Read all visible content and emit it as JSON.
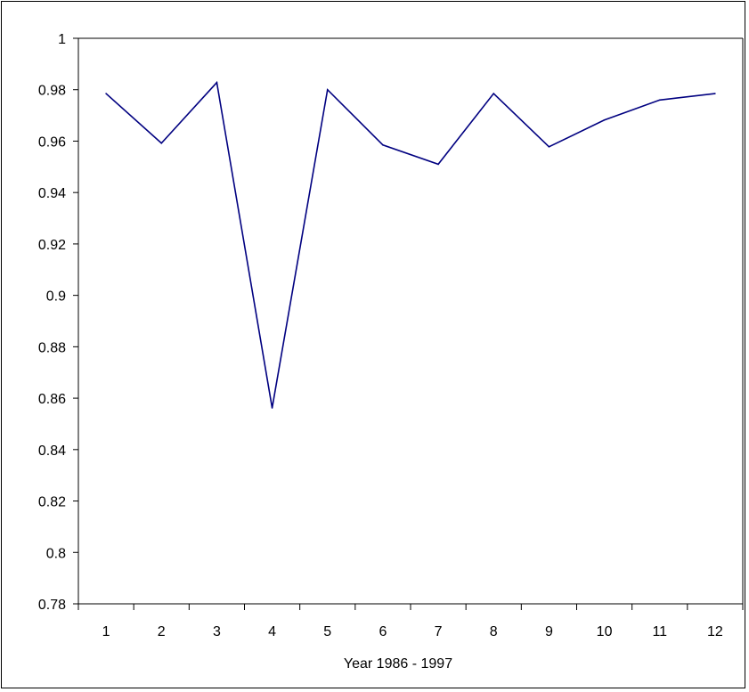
{
  "chart_data": {
    "type": "line",
    "x": [
      "1",
      "2",
      "3",
      "4",
      "5",
      "6",
      "7",
      "8",
      "9",
      "10",
      "11",
      "12"
    ],
    "series": [
      {
        "values": [
          0.9785,
          0.9592,
          0.9828,
          0.8562,
          0.98,
          0.9585,
          0.951,
          0.9785,
          0.9578,
          0.9682,
          0.976,
          0.9785
        ]
      }
    ],
    "title": "",
    "xlabel": "Year 1986 - 1997",
    "ylabel": "",
    "ylim": [
      0.78,
      1.0
    ],
    "yticks": [
      "0.78",
      "0.8",
      "0.82",
      "0.84",
      "0.86",
      "0.88",
      "0.9",
      "0.92",
      "0.94",
      "0.96",
      "0.98",
      "1"
    ],
    "grid": false,
    "legend": "none",
    "colors": {
      "line": "#000080",
      "axis": "#000000",
      "border": "#000000",
      "background": "#ffffff"
    }
  }
}
